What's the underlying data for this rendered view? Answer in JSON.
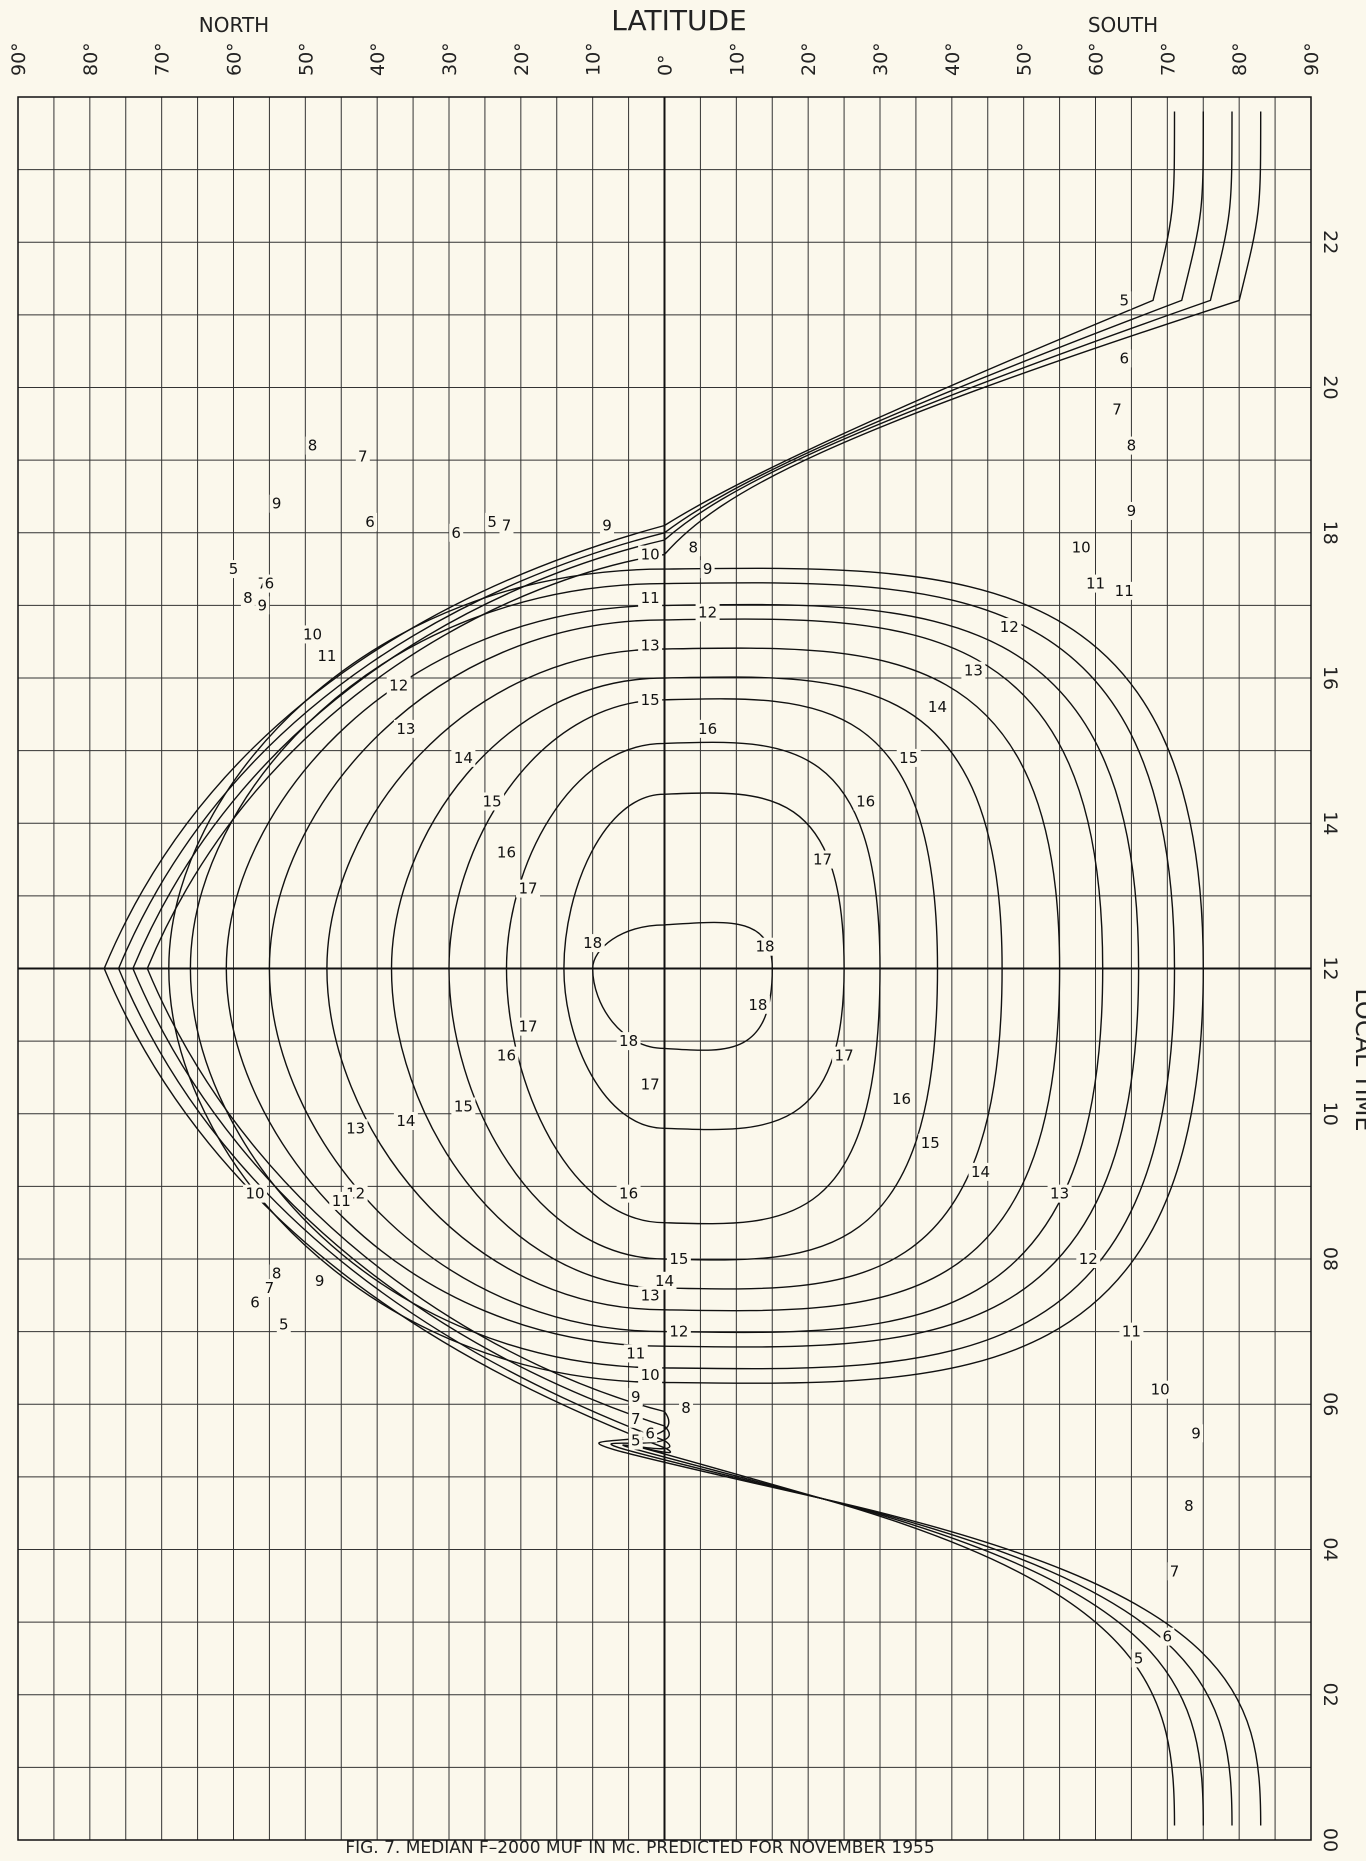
{
  "chart_data": {
    "type": "line",
    "caption": "FIG. 7.  MEDIAN  F–2000 MUF  IN Mc.  PREDICTED  FOR   NOVEMBER 1955",
    "top_axis": {
      "label": "LATITUDE",
      "left_label": "NORTH",
      "right_label": "SOUTH",
      "range_north_to_south": [
        90,
        -90
      ],
      "ticks": [
        {
          "value": 90,
          "label": "90°"
        },
        {
          "value": 80,
          "label": "80°"
        },
        {
          "value": 70,
          "label": "70°"
        },
        {
          "value": 60,
          "label": "60°"
        },
        {
          "value": 50,
          "label": "50°"
        },
        {
          "value": 40,
          "label": "40°"
        },
        {
          "value": 30,
          "label": "30°"
        },
        {
          "value": 20,
          "label": "20°"
        },
        {
          "value": 10,
          "label": "10°"
        },
        {
          "value": 0,
          "label": "0°"
        },
        {
          "value": -10,
          "label": "10°"
        },
        {
          "value": -20,
          "label": "20°"
        },
        {
          "value": -30,
          "label": "30°"
        },
        {
          "value": -40,
          "label": "40°"
        },
        {
          "value": -50,
          "label": "50°"
        },
        {
          "value": -60,
          "label": "60°"
        },
        {
          "value": -70,
          "label": "70°"
        },
        {
          "value": -80,
          "label": "80°"
        },
        {
          "value": -90,
          "label": "90°"
        }
      ]
    },
    "right_axis": {
      "label": "LOCAL  TIME",
      "range_hours": [
        0,
        24
      ],
      "ticks": [
        {
          "value": 0,
          "label": "00"
        },
        {
          "value": 2,
          "label": "02"
        },
        {
          "value": 4,
          "label": "04"
        },
        {
          "value": 6,
          "label": "06"
        },
        {
          "value": 8,
          "label": "08"
        },
        {
          "value": 10,
          "label": "10"
        },
        {
          "value": 12,
          "label": "12"
        },
        {
          "value": 14,
          "label": "14"
        },
        {
          "value": 16,
          "label": "16"
        },
        {
          "value": 18,
          "label": "18"
        },
        {
          "value": 20,
          "label": "20"
        },
        {
          "value": 22,
          "label": "22"
        }
      ]
    },
    "grid": true,
    "contour_units": "Mc",
    "contours": [
      {
        "label": "5",
        "kind": "open",
        "north_limit_lat": 78,
        "equator_rise_time": 5.4,
        "equator_set_time": 18.1,
        "south_night_lat": -71
      },
      {
        "label": "6",
        "kind": "open",
        "north_limit_lat": 76,
        "equator_rise_time": 5.5,
        "equator_set_time": 18.0,
        "south_night_lat": -75
      },
      {
        "label": "7",
        "kind": "open",
        "north_limit_lat": 74,
        "equator_rise_time": 5.7,
        "equator_set_time": 17.9,
        "south_night_lat": -79
      },
      {
        "label": "8",
        "kind": "open",
        "north_limit_lat": 72,
        "equator_rise_time": 5.9,
        "equator_set_time": 17.7,
        "south_night_lat": -83
      },
      {
        "label": "9",
        "kind": "closed",
        "north_limit_lat": 69,
        "south_limit_lat": -75,
        "equator_morning_time": 6.3,
        "equator_evening_time": 17.5
      },
      {
        "label": "10",
        "kind": "closed",
        "north_limit_lat": 66,
        "south_limit_lat": -71,
        "equator_morning_time": 6.5,
        "equator_evening_time": 17.3
      },
      {
        "label": "11",
        "kind": "closed",
        "north_limit_lat": 61,
        "south_limit_lat": -66,
        "equator_morning_time": 6.8,
        "equator_evening_time": 17.0
      },
      {
        "label": "12",
        "kind": "closed",
        "north_limit_lat": 55,
        "south_limit_lat": -61,
        "equator_morning_time": 7.0,
        "equator_evening_time": 16.8
      },
      {
        "label": "13",
        "kind": "closed",
        "north_limit_lat": 47,
        "south_limit_lat": -55,
        "equator_morning_time": 7.3,
        "equator_evening_time": 16.4
      },
      {
        "label": "14",
        "kind": "closed",
        "north_limit_lat": 38,
        "south_limit_lat": -47,
        "equator_morning_time": 7.6,
        "equator_evening_time": 16.0
      },
      {
        "label": "15",
        "kind": "closed",
        "north_limit_lat": 30,
        "south_limit_lat": -38,
        "equator_morning_time": 8.0,
        "equator_evening_time": 15.7
      },
      {
        "label": "16",
        "kind": "closed",
        "north_limit_lat": 22,
        "south_limit_lat": -30,
        "equator_morning_time": 8.5,
        "equator_evening_time": 15.1
      },
      {
        "label": "17",
        "kind": "closed",
        "north_limit_lat": 14,
        "south_limit_lat": -25,
        "equator_morning_time": 9.8,
        "equator_evening_time": 14.4
      },
      {
        "label": "18",
        "kind": "closed",
        "north_limit_lat": 10,
        "south_limit_lat": -15,
        "equator_morning_time": 10.9,
        "equator_evening_time": 12.6
      }
    ]
  }
}
